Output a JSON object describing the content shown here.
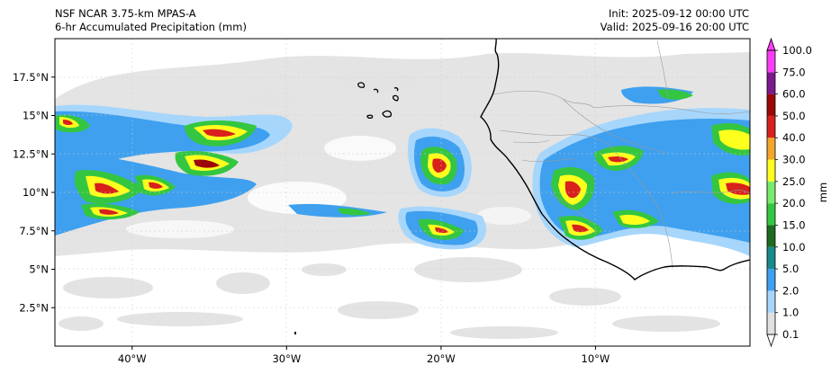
{
  "header": {
    "model_title": "NSF NCAR 3.75-km MPAS-A",
    "field_title": "6-hr Accumulated Precipitation (mm)",
    "init_time": "Init: 2025-09-12 00:00 UTC",
    "valid_time": "Valid: 2025-09-16 20:00 UTC"
  },
  "map": {
    "lon_range": [
      -45,
      0
    ],
    "lat_range": [
      0,
      20
    ],
    "lat_ticks": [
      {
        "value": 17.5,
        "label": "17.5°N"
      },
      {
        "value": 15,
        "label": "15°N"
      },
      {
        "value": 12.5,
        "label": "12.5°N"
      },
      {
        "value": 10,
        "label": "10°N"
      },
      {
        "value": 7.5,
        "label": "7.5°N"
      },
      {
        "value": 5,
        "label": "5°N"
      },
      {
        "value": 2.5,
        "label": "2.5°N"
      }
    ],
    "lon_ticks": [
      {
        "value": -40,
        "label": "40°W"
      },
      {
        "value": -30,
        "label": "30°W"
      },
      {
        "value": -20,
        "label": "20°W"
      },
      {
        "value": -10,
        "label": "10°W"
      }
    ]
  },
  "colorbar": {
    "unit_label": "mm",
    "levels": [
      {
        "label": "0.1",
        "color": "#ffffff"
      },
      {
        "label": "1.0",
        "color": "#e1e1e1"
      },
      {
        "label": "2.0",
        "color": "#a6d6fc"
      },
      {
        "label": "5.0",
        "color": "#3ea0ef"
      },
      {
        "label": "10.0",
        "color": "#1b8a8c"
      },
      {
        "label": "15.0",
        "color": "#1d6b20"
      },
      {
        "label": "20.0",
        "color": "#34c640"
      },
      {
        "label": "25.0",
        "color": "#77ec6c"
      },
      {
        "label": "30.0",
        "color": "#ffff1e"
      },
      {
        "label": "40.0",
        "color": "#f2a62b"
      },
      {
        "label": "50.0",
        "color": "#d8201d"
      },
      {
        "label": "60.0",
        "color": "#9c0707"
      },
      {
        "label": "75.0",
        "color": "#7b1a8c"
      },
      {
        "label": "100.0",
        "color": "#fb3cf5"
      }
    ]
  }
}
